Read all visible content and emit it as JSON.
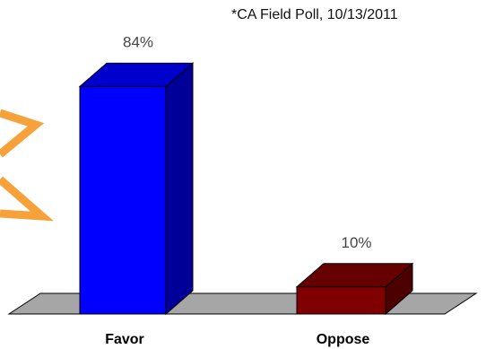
{
  "source_note": "*CA Field Poll, 10/13/2011",
  "colors": {
    "favor": "#0000ff",
    "oppose": "#800000",
    "floor": "#a6a6a6",
    "accent_arrows": "#f7a13a"
  },
  "chart_data": {
    "type": "bar",
    "style": "3d-column",
    "categories": [
      "Favor",
      "Oppose"
    ],
    "values": [
      84,
      10
    ],
    "value_labels": [
      "84%",
      "10%"
    ],
    "ylim": [
      0,
      100
    ],
    "grid": false,
    "legend": "none",
    "title": "",
    "xlabel": "",
    "ylabel": ""
  }
}
